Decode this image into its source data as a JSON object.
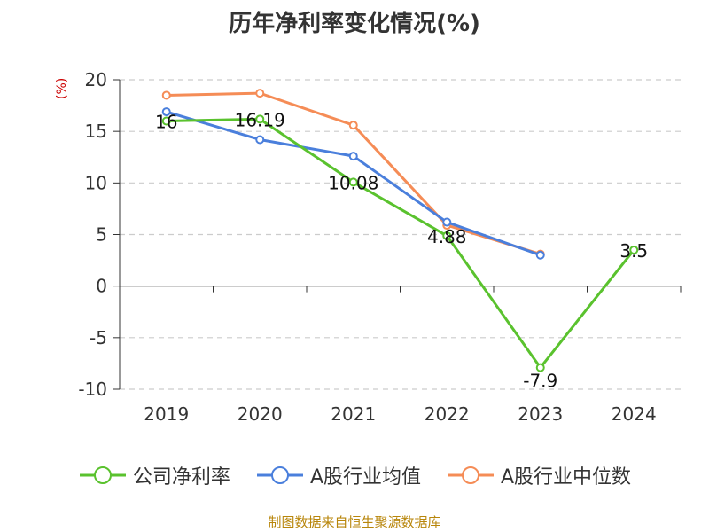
{
  "chart_data": {
    "type": "line",
    "title": "历年净利率变化情况(%)",
    "unit_label": "(%)",
    "categories": [
      "2019",
      "2020",
      "2021",
      "2022",
      "2023",
      "2024"
    ],
    "ylim": [
      -10,
      20
    ],
    "yticks": [
      20,
      15,
      10,
      5,
      0,
      -5,
      -10
    ],
    "grid": true,
    "legend_position": "bottom",
    "series": [
      {
        "name": "公司净利率",
        "color": "#5ac22e",
        "values": [
          16,
          16.19,
          10.08,
          4.88,
          -7.9,
          3.5
        ],
        "labels": [
          "16",
          "16.19",
          "10.08",
          "4.88",
          "-7.9",
          "3.5"
        ]
      },
      {
        "name": "A股行业均值",
        "color": "#4a7fdc",
        "values": [
          16.9,
          14.2,
          12.6,
          6.2,
          3.0,
          null
        ]
      },
      {
        "name": "A股行业中位数",
        "color": "#f58c56",
        "values": [
          18.5,
          18.7,
          15.6,
          5.9,
          3.1,
          null
        ]
      }
    ]
  },
  "source_text": "制图数据来自恒生聚源数据库"
}
